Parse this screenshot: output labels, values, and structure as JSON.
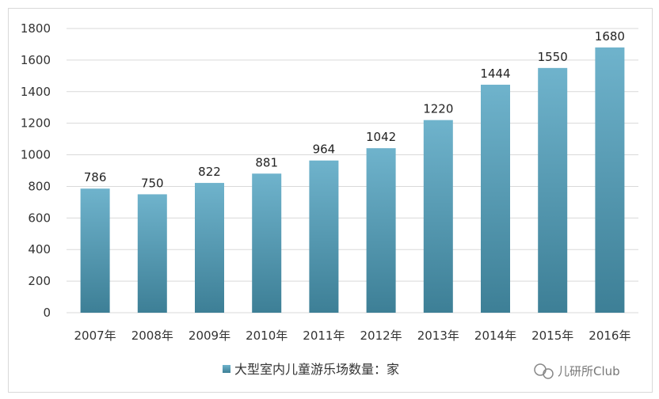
{
  "chart_data": {
    "type": "bar",
    "categories": [
      "2007年",
      "2008年",
      "2009年",
      "2010年",
      "2011年",
      "2012年",
      "2013年",
      "2014年",
      "2015年",
      "2016年"
    ],
    "series": [
      {
        "name": "大型室内儿童游乐场数量：家",
        "values": [
          786,
          750,
          822,
          881,
          964,
          1042,
          1220,
          1444,
          1550,
          1680
        ]
      }
    ],
    "yticks": [
      0,
      200,
      400,
      600,
      800,
      1000,
      1200,
      1400,
      1600,
      1800
    ],
    "ylim": [
      0,
      1800
    ],
    "grid": true,
    "legend_position": "bottom",
    "colors": {
      "bar_top": "#6fb3cc",
      "bar_bottom": "#3d7f96",
      "grid": "#d9d9d9",
      "axis_text": "#333333"
    }
  },
  "watermark": "儿研所Club"
}
